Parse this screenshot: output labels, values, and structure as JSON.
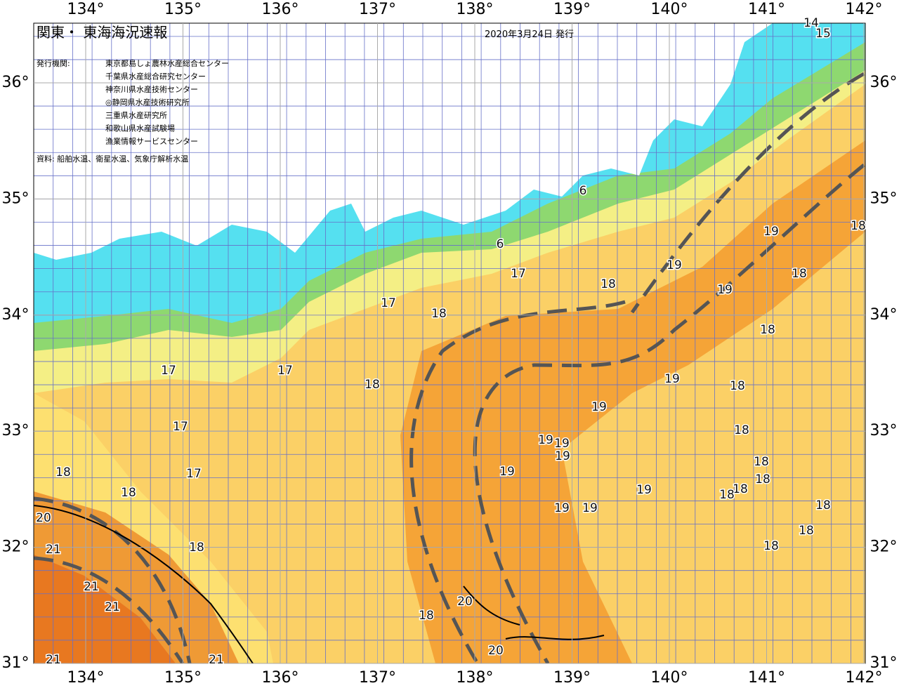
{
  "header": {
    "title": "関東・ 東海海況速報",
    "date": "2020年3月24日 発行",
    "agencies_label": "発行機関:",
    "agencies": [
      "東京都島しょ農林水産総合センター",
      "千葉県水産総合研究センター",
      "神奈川県水産技術センター",
      "◎静岡県水産技術研究所",
      "三重県水産研究所",
      "和歌山県水産試験場",
      "漁業情報サービスセンター"
    ],
    "source": "資料: 船舶水温、衛星水温、気象庁解析水温"
  },
  "map": {
    "lon_ticks": [
      {
        "value": 134,
        "label": "134°"
      },
      {
        "value": 135,
        "label": "135°"
      },
      {
        "value": 136,
        "label": "136°"
      },
      {
        "value": 137,
        "label": "137°"
      },
      {
        "value": 138,
        "label": "138°"
      },
      {
        "value": 139,
        "label": "139°"
      },
      {
        "value": 140,
        "label": "140°"
      },
      {
        "value": 141,
        "label": "141°"
      },
      {
        "value": 142,
        "label": "142°"
      }
    ],
    "lat_ticks": [
      {
        "value": 31,
        "label": "31°"
      },
      {
        "value": 32,
        "label": "32°"
      },
      {
        "value": 33,
        "label": "33°"
      },
      {
        "value": 34,
        "label": "34°"
      },
      {
        "value": 35,
        "label": "35°"
      },
      {
        "value": 36,
        "label": "36°"
      }
    ],
    "contour_labels": [
      "6",
      "6",
      "17",
      "17",
      "18",
      "18",
      "19",
      "19",
      "19",
      "18",
      "18",
      "17",
      "17",
      "18",
      "19",
      "18",
      "19",
      "17",
      "18",
      "19",
      "19",
      "19",
      "18",
      "19",
      "17",
      "18",
      "18",
      "18",
      "18",
      "18",
      "19",
      "19",
      "19",
      "18",
      "18",
      "20",
      "21",
      "18",
      "18",
      "21",
      "21",
      "20",
      "18",
      "20",
      "21",
      "21",
      "15",
      "14",
      "18"
    ]
  }
}
